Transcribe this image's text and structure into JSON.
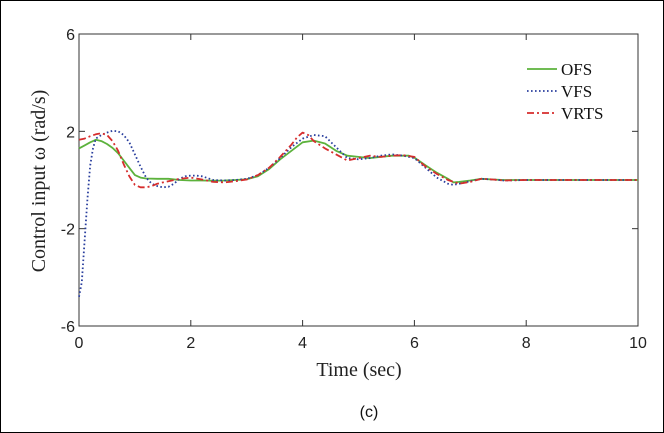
{
  "chart_data": {
    "type": "line",
    "title": "",
    "xlabel": "Time (sec)",
    "ylabel": "Control input ω (rad/s)",
    "xlim": [
      0,
      10
    ],
    "ylim": [
      -6,
      6
    ],
    "xticks": [
      0,
      2,
      4,
      6,
      8,
      10
    ],
    "yticks": [
      -6,
      -2,
      2,
      6
    ],
    "grid": false,
    "legend_position": "top-right",
    "caption": "(c)",
    "series": [
      {
        "name": "OFS",
        "color": "#5cb23c",
        "style": "solid",
        "x": [
          0,
          0.1,
          0.2,
          0.3,
          0.4,
          0.5,
          0.6,
          0.7,
          0.8,
          0.9,
          1.0,
          1.1,
          1.2,
          1.4,
          1.6,
          1.8,
          2.0,
          2.2,
          2.4,
          2.6,
          2.8,
          3.0,
          3.2,
          3.4,
          3.6,
          3.8,
          4.0,
          4.2,
          4.4,
          4.6,
          4.8,
          5.0,
          5.2,
          5.4,
          5.6,
          5.8,
          5.9,
          6.0,
          6.2,
          6.4,
          6.6,
          6.7,
          6.8,
          7.0,
          7.2,
          7.4,
          7.6,
          8.0,
          8.5,
          9.0,
          9.5,
          10.0
        ],
        "y": [
          1.3,
          1.42,
          1.55,
          1.65,
          1.6,
          1.48,
          1.32,
          1.1,
          0.8,
          0.5,
          0.2,
          0.1,
          0.06,
          0.05,
          0.05,
          0.0,
          -0.02,
          -0.02,
          -0.03,
          -0.02,
          0.0,
          0.03,
          0.15,
          0.45,
          0.85,
          1.2,
          1.55,
          1.62,
          1.5,
          1.2,
          1.0,
          0.95,
          0.9,
          0.95,
          1.0,
          1.0,
          1.0,
          0.92,
          0.6,
          0.3,
          0.05,
          -0.1,
          -0.08,
          -0.02,
          0.05,
          0.02,
          0.0,
          0.0,
          0.0,
          0.0,
          0.0,
          0.0
        ]
      },
      {
        "name": "VFS",
        "color": "#2a3f9e",
        "style": "dotted",
        "x": [
          0,
          0.05,
          0.1,
          0.15,
          0.2,
          0.25,
          0.3,
          0.4,
          0.5,
          0.6,
          0.7,
          0.8,
          0.9,
          1.0,
          1.1,
          1.2,
          1.3,
          1.4,
          1.5,
          1.6,
          1.7,
          1.8,
          1.9,
          2.0,
          2.1,
          2.2,
          2.3,
          2.4,
          2.6,
          2.8,
          3.0,
          3.2,
          3.4,
          3.6,
          3.8,
          4.0,
          4.2,
          4.4,
          4.6,
          4.8,
          5.0,
          5.2,
          5.4,
          5.6,
          5.8,
          6.0,
          6.2,
          6.4,
          6.6,
          6.7,
          6.8,
          7.0,
          7.2,
          7.4,
          7.6,
          8.0,
          8.5,
          9.0,
          9.5,
          10.0
        ],
        "y": [
          -4.8,
          -4.2,
          -2.5,
          -0.8,
          0.6,
          1.3,
          1.7,
          1.85,
          1.95,
          2.02,
          2.0,
          1.85,
          1.55,
          1.05,
          0.55,
          0.1,
          -0.15,
          -0.25,
          -0.3,
          -0.28,
          -0.15,
          0.05,
          0.15,
          0.18,
          0.18,
          0.15,
          0.08,
          0.0,
          -0.02,
          0.0,
          0.05,
          0.2,
          0.5,
          0.9,
          1.35,
          1.7,
          1.85,
          1.8,
          1.35,
          0.9,
          0.85,
          0.9,
          1.0,
          1.05,
          1.0,
          0.9,
          0.5,
          0.1,
          -0.15,
          -0.2,
          -0.15,
          -0.05,
          0.05,
          0.02,
          -0.02,
          0.0,
          0.0,
          0.0,
          0.0,
          0.0
        ]
      },
      {
        "name": "VRTS",
        "color": "#d62d2d",
        "style": "dashdot",
        "x": [
          0,
          0.1,
          0.2,
          0.3,
          0.4,
          0.5,
          0.6,
          0.7,
          0.8,
          0.9,
          1.0,
          1.1,
          1.2,
          1.3,
          1.4,
          1.6,
          1.8,
          2.0,
          2.2,
          2.4,
          2.6,
          2.8,
          3.0,
          3.2,
          3.4,
          3.6,
          3.8,
          3.9,
          4.0,
          4.1,
          4.2,
          4.4,
          4.6,
          4.8,
          5.0,
          5.2,
          5.4,
          5.6,
          5.8,
          6.0,
          6.2,
          6.4,
          6.6,
          6.8,
          7.0,
          7.2,
          7.4,
          7.6,
          8.0,
          8.5,
          9.0,
          9.5,
          10.0
        ],
        "y": [
          1.65,
          1.7,
          1.8,
          1.88,
          1.92,
          1.85,
          1.6,
          1.2,
          0.65,
          0.15,
          -0.2,
          -0.3,
          -0.3,
          -0.25,
          -0.15,
          -0.05,
          0.05,
          0.1,
          0.02,
          -0.08,
          -0.1,
          -0.05,
          0.02,
          0.2,
          0.5,
          0.95,
          1.45,
          1.75,
          1.95,
          1.85,
          1.6,
          1.3,
          1.05,
          0.8,
          0.9,
          1.0,
          0.95,
          1.0,
          1.02,
          0.95,
          0.55,
          0.25,
          0.0,
          -0.15,
          -0.08,
          0.05,
          0.02,
          -0.02,
          0.0,
          0.0,
          0.0,
          0.0,
          0.0
        ]
      }
    ]
  }
}
